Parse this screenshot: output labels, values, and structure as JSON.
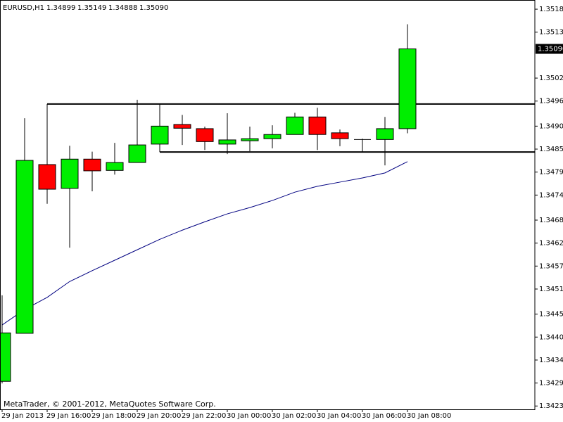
{
  "chart_data": {
    "type": "candlestick",
    "header": {
      "symbol": "EURUSD,H1",
      "ohlc": [
        "1.34899",
        "1.35149",
        "1.34888",
        "1.35090"
      ]
    },
    "footer": "MetaTrader, © 2001-2012, MetaQuotes Software Corp.",
    "categories": [
      "29 Jan 2013",
      null,
      "29 Jan 16:00",
      null,
      "29 Jan 18:00",
      null,
      "29 Jan 20:00",
      null,
      "29 Jan 22:00",
      null,
      "30 Jan 00:00",
      null,
      "30 Jan 02:00",
      null,
      "30 Jan 04:00",
      null,
      "30 Jan 06:00",
      null,
      "30 Jan 08:00"
    ],
    "open": [
      1.34294,
      1.34409,
      1.34813,
      1.34756,
      1.34826,
      1.34799,
      1.34818,
      1.34862,
      1.34909,
      1.34899,
      1.34862,
      1.3487,
      1.34875,
      1.34885,
      1.34927,
      1.34889,
      1.34873,
      1.34873,
      1.34899
    ],
    "high": [
      1.345,
      1.34924,
      1.34958,
      1.34858,
      1.34844,
      1.34865,
      1.34968,
      1.34959,
      1.34932,
      1.34904,
      1.34936,
      1.34904,
      1.34907,
      1.34937,
      1.34949,
      1.34897,
      1.34875,
      1.34927,
      1.35149
    ],
    "low": [
      1.34289,
      1.34409,
      1.34719,
      1.34614,
      1.34749,
      1.34789,
      1.34818,
      1.34843,
      1.3486,
      1.34848,
      1.34838,
      1.34845,
      1.34852,
      1.34885,
      1.34848,
      1.34857,
      1.34843,
      1.34811,
      1.34888
    ],
    "close": [
      1.3441,
      1.34823,
      1.34754,
      1.34826,
      1.34798,
      1.34818,
      1.3486,
      1.34905,
      1.349,
      1.34868,
      1.34872,
      1.34875,
      1.34885,
      1.34927,
      1.34885,
      1.34875,
      1.34873,
      1.34899,
      1.3509
    ],
    "up_color": "#00ee00",
    "down_color": "#ff0000",
    "line": {
      "color": "#000080",
      "values": [
        1.34429,
        1.34466,
        1.34495,
        1.34533,
        1.34559,
        1.34584,
        1.34609,
        1.34634,
        1.34656,
        1.34676,
        1.34695,
        1.3471,
        1.34727,
        1.34747,
        1.34761,
        1.34771,
        1.34781,
        1.34793,
        1.3482
      ]
    },
    "levels": [
      1.34958,
      1.34843
    ],
    "price_label": {
      "value": 1.3509,
      "label": "1.35090"
    },
    "ylim": [
      1.34227,
      1.35207
    ],
    "yticks": [
      1.35185,
      1.3513,
      {
        "value": 1.3502,
        "label": "1.35020"
      },
      1.34965,
      1.34905,
      {
        "value": 1.3485,
        "label": "1.34850"
      },
      1.34795,
      {
        "value": 1.3474,
        "label": "1.34740"
      },
      {
        "value": 1.3468,
        "label": "1.34680"
      },
      1.34625,
      {
        "value": 1.3457,
        "label": "1.34570"
      },
      1.34515,
      1.34455,
      {
        "value": 1.344,
        "label": "1.34400"
      },
      1.34345,
      {
        "value": 1.3429,
        "label": "1.34290"
      },
      1.34235
    ]
  }
}
